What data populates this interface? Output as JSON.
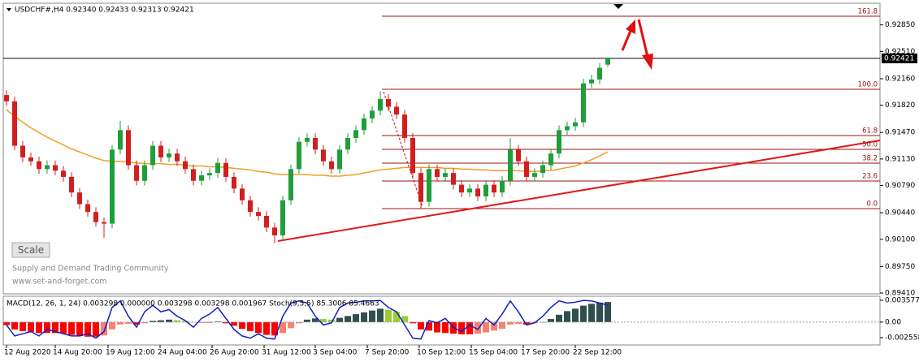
{
  "header": "USDCHF#,H4  0.92340 0.92433 0.92313 0.92421",
  "watermark": {
    "line1": "Supply and Demand Trading Community",
    "line2": "www.set-and-forget.com"
  },
  "button": "Scale",
  "chart_data": {
    "type": "candlestick",
    "bull_color": "#1f9e3a",
    "bear_color": "#d11f1f",
    "ylim": [
      0.894,
      0.93128
    ],
    "yticks": [
      {
        "value": 0.9285,
        "label": "0.92850"
      },
      {
        "value": 0.9251,
        "label": "0.92510"
      },
      {
        "value": 0.9216,
        "label": "0.92160"
      },
      {
        "value": 0.9182,
        "label": "0.91820"
      },
      {
        "value": 0.9147,
        "label": "0.91470"
      },
      {
        "value": 0.9113,
        "label": "0.91130"
      },
      {
        "value": 0.9079,
        "label": "0.90790"
      },
      {
        "value": 0.9044,
        "label": "0.90440"
      },
      {
        "value": 0.901,
        "label": "0.90100"
      },
      {
        "value": 0.8975,
        "label": "0.89750"
      },
      {
        "value": 0.8941,
        "label": "0.89410"
      }
    ],
    "current_price": 0.92421,
    "x_labels": [
      {
        "index": 0,
        "label": "12 Aug 2020"
      },
      {
        "index": 6,
        "label": "14 Aug 20:00"
      },
      {
        "index": 12.5,
        "label": "19 Aug 12:00"
      },
      {
        "index": 18.9,
        "label": "24 Aug 04:00"
      },
      {
        "index": 25.3,
        "label": "26 Aug 20:00"
      },
      {
        "index": 31.7,
        "label": "31 Aug 12:00"
      },
      {
        "index": 38,
        "label": "3 Sep 04:00"
      },
      {
        "index": 44.4,
        "label": "7 Sep 20:00"
      },
      {
        "index": 50.8,
        "label": "10 Sep 12:00"
      },
      {
        "index": 57.2,
        "label": "15 Sep 04:00"
      },
      {
        "index": 63.6,
        "label": "17 Sep 20:00"
      },
      {
        "index": 70,
        "label": "22 Sep 12:00"
      }
    ],
    "ohlc": [
      [
        0.9195,
        0.9201,
        0.9181,
        0.9187
      ],
      [
        0.9187,
        0.9193,
        0.9124,
        0.913
      ],
      [
        0.913,
        0.9136,
        0.9109,
        0.9115
      ],
      [
        0.9115,
        0.9121,
        0.9104,
        0.911
      ],
      [
        0.911,
        0.9116,
        0.9094,
        0.91
      ],
      [
        0.91,
        0.9111,
        0.9094,
        0.9105
      ],
      [
        0.9105,
        0.9111,
        0.9092,
        0.9098
      ],
      [
        0.9098,
        0.9104,
        0.9084,
        0.909
      ],
      [
        0.909,
        0.9096,
        0.9064,
        0.907
      ],
      [
        0.907,
        0.9076,
        0.9049,
        0.9055
      ],
      [
        0.9055,
        0.9061,
        0.9039,
        0.9045
      ],
      [
        0.9045,
        0.9051,
        0.9026,
        0.9032
      ],
      [
        0.9032,
        0.9038,
        0.9012,
        0.903
      ],
      [
        0.903,
        0.9131,
        0.9024,
        0.9125
      ],
      [
        0.9125,
        0.9162,
        0.9119,
        0.915
      ],
      [
        0.915,
        0.9156,
        0.9099,
        0.9105
      ],
      [
        0.9105,
        0.9111,
        0.9079,
        0.9085
      ],
      [
        0.9085,
        0.9111,
        0.9079,
        0.9105
      ],
      [
        0.9105,
        0.9136,
        0.9099,
        0.913
      ],
      [
        0.913,
        0.9136,
        0.9109,
        0.9115
      ],
      [
        0.9115,
        0.9126,
        0.9109,
        0.912
      ],
      [
        0.912,
        0.9126,
        0.9104,
        0.911
      ],
      [
        0.911,
        0.9116,
        0.9094,
        0.91
      ],
      [
        0.91,
        0.9106,
        0.9079,
        0.9085
      ],
      [
        0.9085,
        0.9098,
        0.9079,
        0.9092
      ],
      [
        0.9092,
        0.9101,
        0.9086,
        0.9095
      ],
      [
        0.9095,
        0.9114,
        0.9089,
        0.9108
      ],
      [
        0.9108,
        0.9114,
        0.9084,
        0.909
      ],
      [
        0.909,
        0.9096,
        0.9069,
        0.9075
      ],
      [
        0.9075,
        0.9081,
        0.9054,
        0.906
      ],
      [
        0.906,
        0.9066,
        0.9039,
        0.9045
      ],
      [
        0.9045,
        0.9051,
        0.9034,
        0.904
      ],
      [
        0.904,
        0.9046,
        0.9019,
        0.9025
      ],
      [
        0.9025,
        0.9031,
        0.9005,
        0.9015
      ],
      [
        0.9015,
        0.9066,
        0.9009,
        0.906
      ],
      [
        0.906,
        0.9106,
        0.9054,
        0.91
      ],
      [
        0.91,
        0.9141,
        0.9094,
        0.9135
      ],
      [
        0.9135,
        0.9146,
        0.9129,
        0.914
      ],
      [
        0.914,
        0.9146,
        0.9119,
        0.9125
      ],
      [
        0.9125,
        0.9131,
        0.9104,
        0.911
      ],
      [
        0.911,
        0.9116,
        0.9094,
        0.91
      ],
      [
        0.91,
        0.9131,
        0.9094,
        0.9125
      ],
      [
        0.9125,
        0.9146,
        0.9119,
        0.914
      ],
      [
        0.914,
        0.9156,
        0.9134,
        0.915
      ],
      [
        0.915,
        0.9171,
        0.9144,
        0.9165
      ],
      [
        0.9165,
        0.9181,
        0.9159,
        0.9175
      ],
      [
        0.9175,
        0.92,
        0.9169,
        0.919
      ],
      [
        0.919,
        0.9196,
        0.9174,
        0.918
      ],
      [
        0.918,
        0.9186,
        0.9164,
        0.917
      ],
      [
        0.917,
        0.9176,
        0.9134,
        0.914
      ],
      [
        0.914,
        0.9146,
        0.9089,
        0.9095
      ],
      [
        0.9095,
        0.9101,
        0.905,
        0.9058
      ],
      [
        0.9058,
        0.9106,
        0.9052,
        0.91
      ],
      [
        0.91,
        0.9106,
        0.9084,
        0.909
      ],
      [
        0.909,
        0.9101,
        0.9084,
        0.9095
      ],
      [
        0.9095,
        0.9101,
        0.9074,
        0.908
      ],
      [
        0.908,
        0.9086,
        0.9064,
        0.907
      ],
      [
        0.907,
        0.9081,
        0.9064,
        0.9075
      ],
      [
        0.9075,
        0.9081,
        0.9059,
        0.9065
      ],
      [
        0.9065,
        0.9086,
        0.9059,
        0.908
      ],
      [
        0.908,
        0.9086,
        0.9064,
        0.907
      ],
      [
        0.907,
        0.9091,
        0.9064,
        0.9085
      ],
      [
        0.9085,
        0.914,
        0.9079,
        0.9125
      ],
      [
        0.9125,
        0.9131,
        0.9104,
        0.911
      ],
      [
        0.911,
        0.9116,
        0.9084,
        0.909
      ],
      [
        0.909,
        0.9101,
        0.9084,
        0.9095
      ],
      [
        0.9095,
        0.9111,
        0.9089,
        0.9105
      ],
      [
        0.9105,
        0.9126,
        0.9099,
        0.912
      ],
      [
        0.912,
        0.9156,
        0.9114,
        0.915
      ],
      [
        0.915,
        0.9161,
        0.9144,
        0.9155
      ],
      [
        0.9155,
        0.9166,
        0.9149,
        0.916
      ],
      [
        0.916,
        0.9216,
        0.9154,
        0.921
      ],
      [
        0.921,
        0.9221,
        0.9204,
        0.9215
      ],
      [
        0.9215,
        0.9236,
        0.9209,
        0.923
      ],
      [
        0.9234,
        0.92433,
        0.92313,
        0.92421
      ]
    ],
    "moving_average": {
      "color": "#f0a020",
      "values": [
        0.9176,
        0.9168,
        0.916,
        0.9153,
        0.9147,
        0.9141,
        0.9136,
        0.9131,
        0.9126,
        0.9122,
        0.9118,
        0.9114,
        0.9111,
        0.911,
        0.911,
        0.9109,
        0.9108,
        0.9107,
        0.9107,
        0.9107,
        0.9106,
        0.9106,
        0.9105,
        0.9104,
        0.9104,
        0.9103,
        0.9103,
        0.9102,
        0.9101,
        0.91,
        0.9099,
        0.9097,
        0.9096,
        0.9094,
        0.9093,
        0.9093,
        0.9093,
        0.9093,
        0.9092,
        0.9092,
        0.9091,
        0.9091,
        0.9092,
        0.9093,
        0.9095,
        0.9097,
        0.9099,
        0.91,
        0.9101,
        0.9102,
        0.9102,
        0.9102,
        0.9102,
        0.9102,
        0.9101,
        0.9101,
        0.91,
        0.91,
        0.9099,
        0.9099,
        0.9098,
        0.9098,
        0.9098,
        0.9098,
        0.9097,
        0.9097,
        0.9098,
        0.9098,
        0.91,
        0.9102,
        0.9104,
        0.9108,
        0.9112,
        0.9117,
        0.9122
      ]
    },
    "fib_levels": [
      {
        "label": "161.8",
        "price": 0.92961
      },
      {
        "label": "100.0",
        "price": 0.92024
      },
      {
        "label": "61.8",
        "price": 0.91431
      },
      {
        "label": "50.0",
        "price": 0.91254
      },
      {
        "label": "38.2",
        "price": 0.91077
      },
      {
        "label": "23.6",
        "price": 0.90848
      },
      {
        "label": "0.0",
        "price": 0.90494
      }
    ],
    "fib_color": "#a01010",
    "fib_start_index": 46.2,
    "trendline": {
      "color": "#e01818",
      "from": {
        "index": 33.4,
        "price": 0.90077
      },
      "to": {
        "index": 107.5,
        "price": 0.91368
      }
    },
    "indicator": {
      "header": "MACD(12, 26, 1, 24) 0.003298 0.000000 0.003298 0.003298 0.001967  Stoch(9,5,5) 85.3006 85.4663",
      "ylim": [
        -0.003758,
        0.004244
      ],
      "yticks": [
        0.003577,
        {
          "value": 0,
          "label": "0.00"
        },
        -0.002558
      ],
      "histogram": [
        -0.0005,
        -0.0012,
        -0.0015,
        -0.0016,
        -0.0018,
        -0.0018,
        -0.0018,
        -0.0019,
        -0.0021,
        -0.0023,
        -0.0024,
        -0.0024,
        -0.0022,
        -0.0012,
        -0.0004,
        -0.0003,
        -0.0004,
        -0.0002,
        0.0002,
        0.0003,
        0.0004,
        0.0003,
        0.0002,
        0.0,
        -0.0001,
        -0.0001,
        0.0001,
        -0.0002,
        -0.0006,
        -0.0011,
        -0.0015,
        -0.0018,
        -0.0021,
        -0.0022,
        -0.0018,
        -0.001,
        -0.0002,
        0.0004,
        0.0006,
        0.0005,
        0.0004,
        0.0007,
        0.001,
        0.0013,
        0.0016,
        0.0019,
        0.0022,
        0.002,
        0.0017,
        0.001,
        -0.0002,
        -0.0012,
        -0.0014,
        -0.0017,
        -0.0018,
        -0.0019,
        -0.002,
        -0.002,
        -0.0019,
        -0.0017,
        -0.0014,
        -0.0011,
        -0.0004,
        -0.0003,
        -0.0004,
        -0.0002,
        0.0,
        0.0005,
        0.0012,
        0.0018,
        0.0022,
        0.0027,
        0.003,
        0.0032,
        0.003298
      ],
      "colors": {
        "pos_up": "#2f4f4f",
        "pos_down": "#9acd32",
        "neg_down": "#ff0000",
        "neg_up": "#fa8072"
      },
      "stoch_color": "#1020c0",
      "stoch_lim": [
        0,
        100
      ],
      "stoch": [
        40,
        15,
        20,
        25,
        15,
        30,
        25,
        20,
        15,
        15,
        20,
        10,
        25,
        80,
        95,
        60,
        35,
        70,
        85,
        70,
        75,
        60,
        50,
        35,
        55,
        65,
        80,
        55,
        30,
        15,
        10,
        20,
        10,
        8,
        60,
        90,
        95,
        90,
        60,
        40,
        45,
        80,
        90,
        92,
        95,
        95,
        96,
        80,
        70,
        40,
        10,
        8,
        50,
        45,
        55,
        35,
        25,
        40,
        30,
        55,
        40,
        65,
        95,
        70,
        40,
        45,
        60,
        80,
        95,
        90,
        92,
        96,
        95,
        90,
        85.3
      ]
    }
  }
}
